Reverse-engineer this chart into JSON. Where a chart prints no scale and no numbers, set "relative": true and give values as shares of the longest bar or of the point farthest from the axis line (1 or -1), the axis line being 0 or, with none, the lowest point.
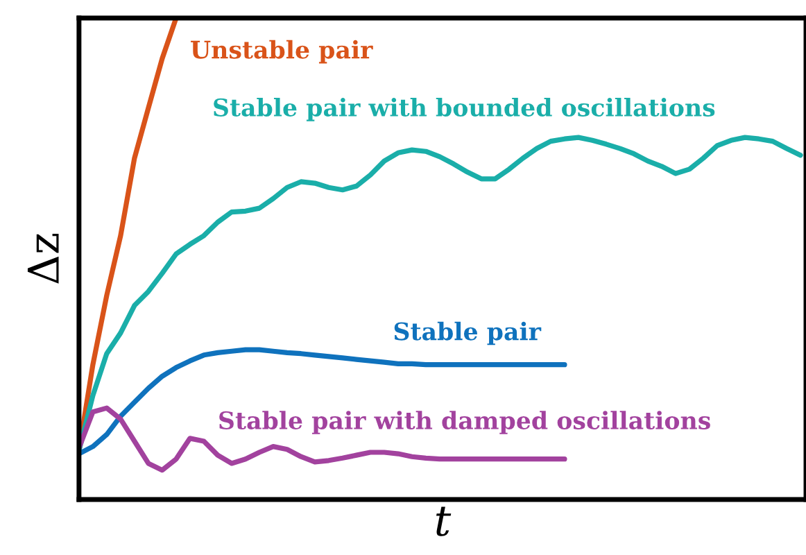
{
  "chart_data": {
    "type": "line",
    "relative": true,
    "xlabel": "t",
    "ylabel": "Δz",
    "categories": [
      null,
      null,
      null,
      null,
      null,
      null,
      null,
      null,
      null,
      null,
      null,
      null,
      null,
      null,
      null,
      null,
      null,
      null,
      null,
      null,
      null,
      null,
      null,
      null,
      null,
      null,
      null,
      null,
      null,
      null,
      null,
      null,
      null,
      null,
      null,
      null,
      null,
      null,
      null,
      null,
      null,
      null,
      null,
      null,
      null,
      null,
      null,
      null,
      null,
      null,
      null,
      null,
      null
    ],
    "series": [
      {
        "name": "Unstable pair",
        "color": "#d95319",
        "values": [
          0.101,
          0.28,
          0.424,
          0.548,
          0.709,
          0.813,
          0.916,
          1.0,
          null,
          null,
          null,
          null,
          null,
          null,
          null,
          null,
          null,
          null,
          null,
          null,
          null,
          null,
          null,
          null,
          null,
          null,
          null,
          null,
          null,
          null,
          null,
          null,
          null,
          null,
          null,
          null,
          null,
          null,
          null,
          null,
          null,
          null,
          null,
          null,
          null,
          null,
          null,
          null,
          null,
          null,
          null,
          null,
          null
        ]
      },
      {
        "name": "Stable pair with bounded oscillations",
        "color": "#1aaea9",
        "values": [
          0.101,
          0.216,
          0.303,
          0.346,
          0.403,
          0.432,
          0.47,
          0.51,
          0.53,
          0.548,
          0.576,
          0.597,
          0.599,
          0.605,
          0.625,
          0.648,
          0.66,
          0.657,
          0.648,
          0.643,
          0.651,
          0.674,
          0.703,
          0.72,
          0.726,
          0.723,
          0.712,
          0.697,
          0.68,
          0.666,
          0.666,
          0.686,
          0.709,
          0.729,
          0.744,
          0.749,
          0.752,
          0.746,
          0.738,
          0.729,
          0.718,
          0.703,
          0.692,
          0.677,
          0.686,
          0.709,
          0.735,
          0.746,
          0.752,
          0.749,
          0.744,
          0.729,
          0.715
        ]
      },
      {
        "name": "Stable pair",
        "color": "#0f72bd",
        "values": [
          0.095,
          0.11,
          0.135,
          0.173,
          0.202,
          0.231,
          0.256,
          0.274,
          0.288,
          0.3,
          0.305,
          0.308,
          0.311,
          0.311,
          0.308,
          0.305,
          0.303,
          0.3,
          0.297,
          0.294,
          0.291,
          0.288,
          0.285,
          0.282,
          0.282,
          0.28,
          0.28,
          0.28,
          0.28,
          0.28,
          0.28,
          0.28,
          0.28,
          0.28,
          0.28,
          0.28,
          null,
          null,
          null,
          null,
          null,
          null,
          null,
          null,
          null,
          null,
          null,
          null,
          null,
          null,
          null,
          null,
          null
        ]
      },
      {
        "name": "Stable pair with damped oscillations",
        "color": "#a2429e",
        "values": [
          0.107,
          0.182,
          0.19,
          0.167,
          0.121,
          0.075,
          0.061,
          0.084,
          0.127,
          0.121,
          0.092,
          0.075,
          0.084,
          0.098,
          0.11,
          0.104,
          0.089,
          0.078,
          0.081,
          0.086,
          0.092,
          0.098,
          0.098,
          0.095,
          0.089,
          0.086,
          0.084,
          0.084,
          0.084,
          0.084,
          0.084,
          0.084,
          0.084,
          0.084,
          0.084,
          0.084,
          null,
          null,
          null,
          null,
          null,
          null,
          null,
          null,
          null,
          null,
          null,
          null,
          null,
          null,
          null,
          null,
          null
        ]
      }
    ]
  }
}
